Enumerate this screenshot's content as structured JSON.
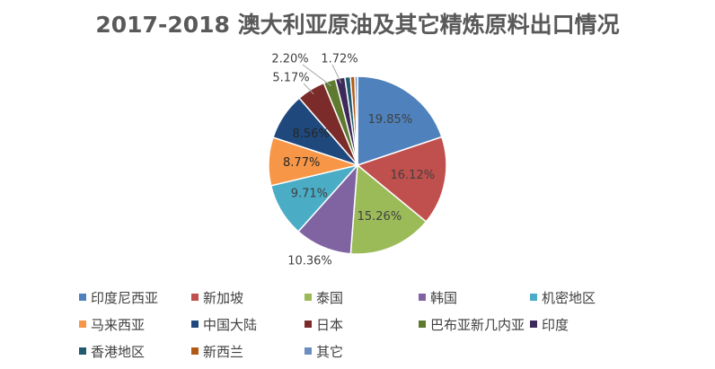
{
  "chart_data": {
    "type": "pie",
    "title": "2017-2018 澳大利亚原油及其它精炼原料出口情况",
    "categories": [
      "印度尼西亚",
      "新加坡",
      "泰国",
      "韩国",
      "机密地区",
      "马来西亚",
      "中国大陆",
      "日本",
      "巴布亚新几内亚",
      "印度",
      "香港地区",
      "新西兰",
      "其它"
    ],
    "values": [
      19.85,
      16.12,
      15.26,
      10.36,
      9.71,
      8.77,
      8.56,
      5.17,
      2.2,
      1.72,
      1.0,
      0.8,
      0.48
    ],
    "data_labels": [
      "19.85%",
      "16.12%",
      "15.26%",
      "10.36%",
      "9.71%",
      "8.77%",
      "8.56%",
      "5.17%",
      "2.20%",
      "1.72%",
      "",
      "",
      ""
    ],
    "colors": [
      "#4f81bd",
      "#c0504d",
      "#9bbb59",
      "#8064a2",
      "#4bacc6",
      "#f79646",
      "#1f497d",
      "#7b2c2a",
      "#5e7a2e",
      "#3d2a5a",
      "#215a6e",
      "#b25a16",
      "#6c8ebf"
    ],
    "legend_position": "bottom"
  }
}
